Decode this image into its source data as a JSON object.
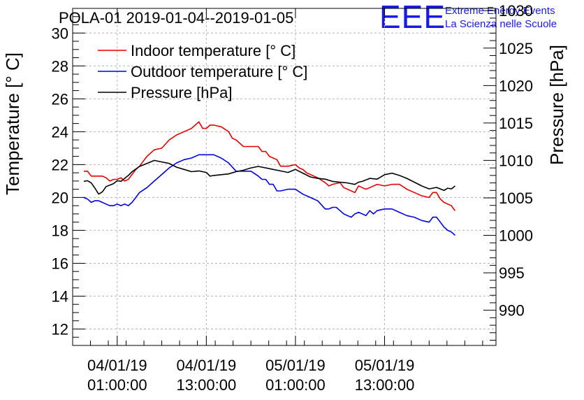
{
  "chart_data": {
    "type": "line",
    "title": "POLA-01 2019-01-04--2019-01-05",
    "brand": {
      "logo": "EEE",
      "line1": "Extreme Energy Events",
      "line2": "La Scienza nelle Scuole",
      "color": "#1a1ae6"
    },
    "x": {
      "unit": "hours since 2019-01-04 00:00",
      "range": [
        -5,
        52
      ],
      "ticks": [
        {
          "value": 1,
          "date": "04/01/19",
          "time": "01:00:00"
        },
        {
          "value": 13,
          "date": "04/01/19",
          "time": "13:00:00"
        },
        {
          "value": 25,
          "date": "05/01/19",
          "time": "01:00:00"
        },
        {
          "value": 37,
          "date": "05/01/19",
          "time": "13:00:00"
        }
      ]
    },
    "y_left": {
      "label": "Temperature [° C]",
      "range": [
        11,
        31.5
      ],
      "ticks": [
        12,
        14,
        16,
        18,
        20,
        22,
        24,
        26,
        28,
        30
      ]
    },
    "y_right": {
      "label": "Pressure [hPa]",
      "range": [
        985.3,
        1030.3
      ],
      "ticks": [
        990,
        995,
        1000,
        1005,
        1010,
        1015,
        1020,
        1025,
        1030
      ]
    },
    "series": [
      {
        "name": "Indoor temperature [° C]",
        "axis": "left",
        "color": "#e00000",
        "points": [
          [
            -3.5,
            21.6
          ],
          [
            -3,
            21.6
          ],
          [
            -2.5,
            21.3
          ],
          [
            -2,
            21.3
          ],
          [
            -1.5,
            21.3
          ],
          [
            -1,
            21.3
          ],
          [
            -0.5,
            21.2
          ],
          [
            0,
            21.0
          ],
          [
            0.5,
            21.1
          ],
          [
            1,
            21.1
          ],
          [
            1.5,
            21.2
          ],
          [
            2,
            21.0
          ],
          [
            2.5,
            21.1
          ],
          [
            3,
            21.4
          ],
          [
            3.5,
            21.7
          ],
          [
            4,
            21.9
          ],
          [
            5,
            22.5
          ],
          [
            6,
            22.9
          ],
          [
            7,
            23.0
          ],
          [
            8,
            23.5
          ],
          [
            9,
            23.8
          ],
          [
            10,
            24.0
          ],
          [
            11,
            24.2
          ],
          [
            12,
            24.6
          ],
          [
            12.5,
            24.2
          ],
          [
            13,
            24.2
          ],
          [
            13.5,
            24.4
          ],
          [
            14,
            24.4
          ],
          [
            15,
            24.3
          ],
          [
            16,
            24.0
          ],
          [
            16.5,
            23.6
          ],
          [
            17,
            23.5
          ],
          [
            18,
            23.1
          ],
          [
            19,
            23.1
          ],
          [
            20,
            23.1
          ],
          [
            20.5,
            22.8
          ],
          [
            21,
            22.8
          ],
          [
            21.5,
            22.5
          ],
          [
            22,
            22.4
          ],
          [
            22.5,
            22.3
          ],
          [
            23,
            21.9
          ],
          [
            24,
            21.9
          ],
          [
            25,
            22.0
          ],
          [
            25.5,
            21.8
          ],
          [
            26,
            21.7
          ],
          [
            26.5,
            21.5
          ],
          [
            27,
            21.4
          ],
          [
            28,
            21.2
          ],
          [
            29,
            20.9
          ],
          [
            29.5,
            20.7
          ],
          [
            30,
            20.8
          ],
          [
            31,
            20.9
          ],
          [
            31.5,
            20.6
          ],
          [
            32,
            20.5
          ],
          [
            33,
            20.3
          ],
          [
            33.5,
            20.7
          ],
          [
            34,
            20.6
          ],
          [
            34.5,
            20.5
          ],
          [
            35,
            20.6
          ],
          [
            36,
            20.8
          ],
          [
            37,
            20.7
          ],
          [
            38,
            20.8
          ],
          [
            39,
            20.8
          ],
          [
            40,
            20.5
          ],
          [
            41,
            20.3
          ],
          [
            42,
            20.1
          ],
          [
            43,
            20.0
          ],
          [
            43.5,
            20.3
          ],
          [
            44,
            20.3
          ],
          [
            44.5,
            19.9
          ],
          [
            45,
            19.7
          ],
          [
            45.5,
            19.6
          ],
          [
            46,
            19.5
          ],
          [
            46.3,
            19.3
          ],
          [
            46.5,
            19.2
          ]
        ]
      },
      {
        "name": "Outdoor temperature [° C]",
        "axis": "left",
        "color": "#0000e0",
        "points": [
          [
            -3.5,
            20.0
          ],
          [
            -3,
            19.9
          ],
          [
            -2.5,
            19.7
          ],
          [
            -2,
            19.8
          ],
          [
            -1.5,
            19.8
          ],
          [
            -1,
            19.7
          ],
          [
            -0.5,
            19.6
          ],
          [
            0,
            19.5
          ],
          [
            0.5,
            19.5
          ],
          [
            1,
            19.6
          ],
          [
            1.5,
            19.5
          ],
          [
            2,
            19.6
          ],
          [
            2.5,
            19.5
          ],
          [
            3,
            19.7
          ],
          [
            3.5,
            20.0
          ],
          [
            4,
            20.3
          ],
          [
            5,
            20.6
          ],
          [
            6,
            21.0
          ],
          [
            7,
            21.4
          ],
          [
            8,
            21.8
          ],
          [
            9,
            22.1
          ],
          [
            10,
            22.3
          ],
          [
            11,
            22.4
          ],
          [
            12,
            22.6
          ],
          [
            13,
            22.6
          ],
          [
            14,
            22.6
          ],
          [
            15,
            22.4
          ],
          [
            16,
            22.1
          ],
          [
            17,
            21.6
          ],
          [
            18,
            21.6
          ],
          [
            19,
            21.6
          ],
          [
            20,
            21.3
          ],
          [
            20.5,
            21.1
          ],
          [
            21,
            21.1
          ],
          [
            21.5,
            20.8
          ],
          [
            22,
            20.8
          ],
          [
            22.5,
            20.4
          ],
          [
            23,
            20.4
          ],
          [
            24,
            20.5
          ],
          [
            25,
            20.5
          ],
          [
            26,
            20.2
          ],
          [
            26.5,
            20.1
          ],
          [
            27,
            20.0
          ],
          [
            28,
            19.8
          ],
          [
            29,
            19.3
          ],
          [
            29.5,
            19.3
          ],
          [
            30,
            19.4
          ],
          [
            30.5,
            19.4
          ],
          [
            31,
            19.2
          ],
          [
            31.5,
            19.0
          ],
          [
            32,
            18.9
          ],
          [
            32.5,
            18.8
          ],
          [
            33,
            19.0
          ],
          [
            33.5,
            19.1
          ],
          [
            34,
            19.0
          ],
          [
            34.5,
            18.9
          ],
          [
            35,
            19.2
          ],
          [
            35.5,
            19.0
          ],
          [
            36,
            19.2
          ],
          [
            37,
            19.3
          ],
          [
            38,
            19.3
          ],
          [
            39,
            19.1
          ],
          [
            40,
            18.9
          ],
          [
            41,
            18.8
          ],
          [
            42,
            18.6
          ],
          [
            43,
            18.5
          ],
          [
            43.5,
            18.8
          ],
          [
            44,
            18.8
          ],
          [
            44.5,
            18.5
          ],
          [
            45,
            18.2
          ],
          [
            45.5,
            18.0
          ],
          [
            46,
            17.9
          ],
          [
            46.5,
            17.7
          ]
        ]
      },
      {
        "name": "Pressure [hPa]",
        "axis": "right",
        "color": "#000000",
        "points": [
          [
            -3.5,
            1007.2
          ],
          [
            -3,
            1007.3
          ],
          [
            -2.5,
            1007.0
          ],
          [
            -2,
            1006.3
          ],
          [
            -1.5,
            1005.5
          ],
          [
            -1,
            1005.8
          ],
          [
            -0.5,
            1006.5
          ],
          [
            0,
            1006.7
          ],
          [
            0.5,
            1006.9
          ],
          [
            1,
            1007.3
          ],
          [
            1.5,
            1007.2
          ],
          [
            2,
            1007.6
          ],
          [
            2.5,
            1008.0
          ],
          [
            3,
            1008.5
          ],
          [
            4,
            1009.2
          ],
          [
            5,
            1009.6
          ],
          [
            6,
            1010.0
          ],
          [
            7,
            1009.8
          ],
          [
            8,
            1009.6
          ],
          [
            9,
            1009.1
          ],
          [
            10,
            1008.8
          ],
          [
            11,
            1008.5
          ],
          [
            12,
            1008.6
          ],
          [
            13,
            1008.4
          ],
          [
            13.5,
            1007.9
          ],
          [
            14,
            1008.0
          ],
          [
            15,
            1008.1
          ],
          [
            16,
            1008.2
          ],
          [
            17,
            1008.5
          ],
          [
            18,
            1008.7
          ],
          [
            19,
            1009.0
          ],
          [
            20,
            1009.2
          ],
          [
            21,
            1009.0
          ],
          [
            22,
            1008.8
          ],
          [
            23,
            1008.6
          ],
          [
            24,
            1008.4
          ],
          [
            25,
            1008.8
          ],
          [
            26,
            1008.3
          ],
          [
            27,
            1007.8
          ],
          [
            28,
            1007.6
          ],
          [
            29,
            1007.5
          ],
          [
            30,
            1007.2
          ],
          [
            31,
            1007.1
          ],
          [
            32,
            1007.0
          ],
          [
            33,
            1006.8
          ],
          [
            33.5,
            1007.1
          ],
          [
            34,
            1007.2
          ],
          [
            35,
            1007.6
          ],
          [
            36,
            1007.5
          ],
          [
            37,
            1008.1
          ],
          [
            38,
            1008.3
          ],
          [
            39,
            1008.0
          ],
          [
            40,
            1007.6
          ],
          [
            41,
            1007.1
          ],
          [
            42,
            1006.6
          ],
          [
            43,
            1006.2
          ],
          [
            44,
            1006.4
          ],
          [
            45,
            1006.0
          ],
          [
            45.5,
            1006.3
          ],
          [
            46,
            1006.2
          ],
          [
            46.5,
            1006.6
          ]
        ]
      }
    ]
  }
}
